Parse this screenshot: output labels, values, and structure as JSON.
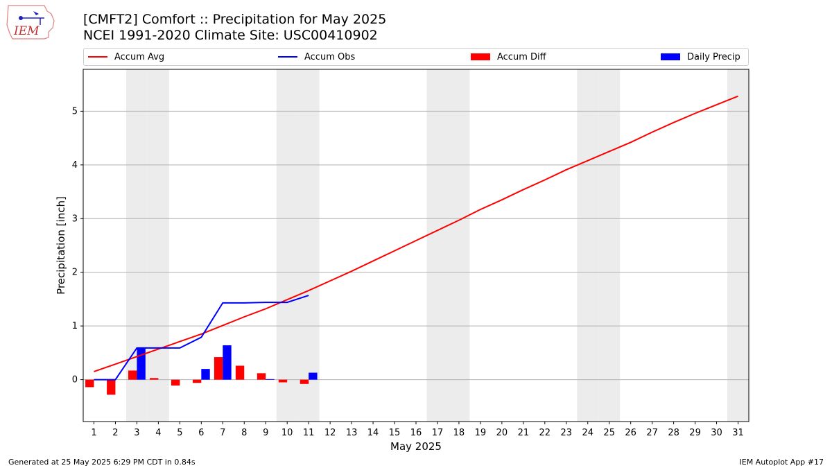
{
  "header": {
    "logo_text": "IEM",
    "title_line1": "[CMFT2] Comfort :: Precipitation for May 2025",
    "title_line2": "NCEI 1991-2020 Climate Site: USC00410902"
  },
  "legend": {
    "items": [
      {
        "label": "Accum Avg",
        "kind": "line",
        "color": "#ff0000"
      },
      {
        "label": "Accum Obs",
        "kind": "line",
        "color": "#0000ff"
      },
      {
        "label": "Accum Diff",
        "kind": "patch",
        "color": "#ff0000"
      },
      {
        "label": "Daily Precip",
        "kind": "patch",
        "color": "#0000ff"
      }
    ]
  },
  "chart_data": {
    "type": "line",
    "xlabel": "May 2025",
    "ylabel": "Precipitation [inch]",
    "x": [
      1,
      2,
      3,
      4,
      5,
      6,
      7,
      8,
      9,
      10,
      11,
      12,
      13,
      14,
      15,
      16,
      17,
      18,
      19,
      20,
      21,
      22,
      23,
      24,
      25,
      26,
      27,
      28,
      29,
      30,
      31
    ],
    "xlim": [
      0.5,
      31.5
    ],
    "ylim": [
      -0.78,
      5.78
    ],
    "yticks": [
      0,
      1,
      2,
      3,
      4,
      5
    ],
    "grid": "horizontal",
    "legend_position": "top",
    "weekend_days": [
      3,
      4,
      10,
      11,
      17,
      18,
      24,
      25,
      31
    ],
    "series": [
      {
        "name": "Accum Avg",
        "kind": "line",
        "color": "#ff0000",
        "x": [
          1,
          2,
          3,
          4,
          5,
          6,
          7,
          8,
          9,
          10,
          11,
          12,
          13,
          14,
          15,
          16,
          17,
          18,
          19,
          20,
          21,
          22,
          23,
          24,
          25,
          26,
          27,
          28,
          29,
          30,
          31
        ],
        "values": [
          0.15,
          0.29,
          0.43,
          0.57,
          0.71,
          0.85,
          1.01,
          1.17,
          1.32,
          1.49,
          1.66,
          1.84,
          2.02,
          2.21,
          2.4,
          2.59,
          2.78,
          2.97,
          3.17,
          3.35,
          3.54,
          3.72,
          3.91,
          4.08,
          4.25,
          4.42,
          4.61,
          4.79,
          4.96,
          5.12,
          5.28
        ]
      },
      {
        "name": "Accum Obs",
        "kind": "line",
        "color": "#0000ff",
        "x": [
          1,
          2,
          3,
          4,
          5,
          6,
          7,
          8,
          9,
          10,
          11
        ],
        "values": [
          0.0,
          0.0,
          0.59,
          0.59,
          0.59,
          0.79,
          1.43,
          1.43,
          1.44,
          1.44,
          1.57
        ]
      },
      {
        "name": "Accum Diff",
        "kind": "bar",
        "color": "#ff0000",
        "x": [
          1,
          2,
          3,
          4,
          5,
          6,
          7,
          8,
          9,
          10,
          11
        ],
        "values": [
          -0.14,
          -0.28,
          0.17,
          0.03,
          -0.11,
          -0.06,
          0.42,
          0.26,
          0.12,
          -0.05,
          -0.08
        ]
      },
      {
        "name": "Daily Precip",
        "kind": "bar",
        "color": "#0000ff",
        "x": [
          1,
          2,
          3,
          4,
          5,
          6,
          7,
          8,
          9,
          10,
          11
        ],
        "values": [
          0.0,
          0.0,
          0.59,
          0.0,
          0.0,
          0.2,
          0.64,
          0.0,
          0.01,
          0.0,
          0.13
        ]
      }
    ]
  },
  "footer": {
    "left": "Generated at 25 May 2025 6:29 PM CDT in 0.84s",
    "right": "IEM Autoplot App #17"
  }
}
